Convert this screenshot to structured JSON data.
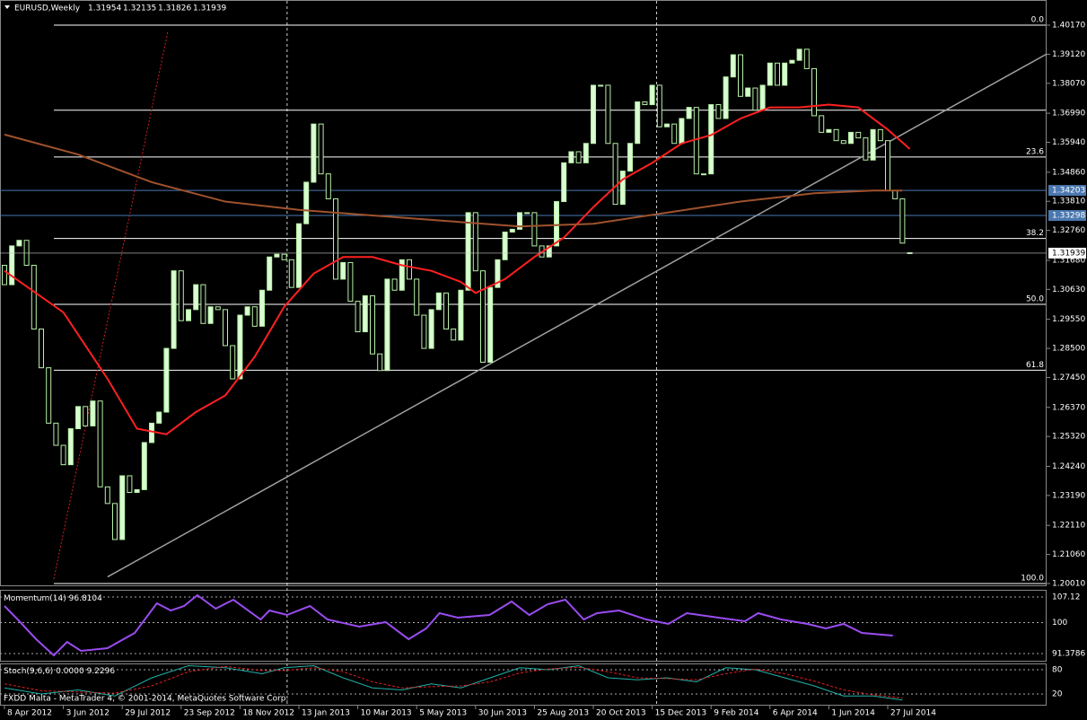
{
  "chart_data": [
    {
      "type": "candlestick",
      "title": "EURUSD,Weekly",
      "header_values": [
        1.31954,
        1.32135,
        1.31826,
        1.31939
      ],
      "up_color": "#d8ffd0",
      "down_color": "#000000",
      "edge_color": "#b8f0a8",
      "open": [
        1.315,
        1.308,
        1.322,
        1.324,
        1.315,
        1.292,
        1.278,
        1.258,
        1.25,
        1.243,
        1.256,
        1.264,
        1.257,
        1.266,
        1.235,
        1.229,
        1.216,
        1.239,
        1.233,
        1.234,
        1.251,
        1.258,
        1.262,
        1.285,
        1.313,
        1.295,
        1.299,
        1.308,
        1.294,
        1.3,
        1.299,
        1.286,
        1.274,
        1.297,
        1.3,
        1.293,
        1.306,
        1.318,
        1.319,
        1.317,
        1.307,
        1.33,
        1.345,
        1.366,
        1.348,
        1.339,
        1.31,
        1.316,
        1.302,
        1.291,
        1.304,
        1.283,
        1.277,
        1.31,
        1.306,
        1.317,
        1.31,
        1.297,
        1.285,
        1.299,
        1.305,
        1.292,
        1.288,
        1.306,
        1.334,
        1.313,
        1.28,
        1.307,
        1.317,
        1.327,
        1.328,
        1.334,
        1.334,
        1.322,
        1.318,
        1.322,
        1.338,
        1.352,
        1.356,
        1.352,
        1.359,
        1.38,
        1.38,
        1.359,
        1.337,
        1.349,
        1.359,
        1.374,
        1.373,
        1.38,
        1.365,
        1.366,
        1.359,
        1.368,
        1.372,
        1.348,
        1.348,
        1.373,
        1.368,
        1.383,
        1.391,
        1.376,
        1.379,
        1.371,
        1.38,
        1.388,
        1.38,
        1.388,
        1.389,
        1.393,
        1.386,
        1.369,
        1.363,
        1.364,
        1.36,
        1.359,
        1.363,
        1.361,
        1.353,
        1.364,
        1.36,
        1.342,
        1.339,
        1.31954
      ],
      "close": [
        1.308,
        1.322,
        1.324,
        1.315,
        1.292,
        1.278,
        1.258,
        1.25,
        1.243,
        1.256,
        1.264,
        1.257,
        1.266,
        1.235,
        1.229,
        1.216,
        1.239,
        1.233,
        1.234,
        1.251,
        1.258,
        1.262,
        1.285,
        1.313,
        1.295,
        1.299,
        1.308,
        1.294,
        1.3,
        1.299,
        1.286,
        1.274,
        1.297,
        1.3,
        1.293,
        1.306,
        1.318,
        1.319,
        1.317,
        1.307,
        1.33,
        1.345,
        1.366,
        1.348,
        1.339,
        1.31,
        1.316,
        1.302,
        1.291,
        1.304,
        1.283,
        1.277,
        1.31,
        1.306,
        1.317,
        1.31,
        1.297,
        1.285,
        1.299,
        1.305,
        1.292,
        1.288,
        1.306,
        1.334,
        1.313,
        1.28,
        1.307,
        1.317,
        1.327,
        1.328,
        1.334,
        1.334,
        1.322,
        1.318,
        1.322,
        1.338,
        1.352,
        1.356,
        1.352,
        1.359,
        1.38,
        1.38,
        1.359,
        1.337,
        1.349,
        1.359,
        1.374,
        1.373,
        1.38,
        1.365,
        1.366,
        1.359,
        1.368,
        1.372,
        1.348,
        1.348,
        1.373,
        1.368,
        1.383,
        1.391,
        1.376,
        1.379,
        1.371,
        1.38,
        1.388,
        1.38,
        1.388,
        1.389,
        1.393,
        1.386,
        1.369,
        1.363,
        1.364,
        1.36,
        1.359,
        1.363,
        1.361,
        1.353,
        1.364,
        1.36,
        1.342,
        1.339,
        1.323,
        1.31939
      ],
      "ylim": [
        1.19945,
        1.41013
      ],
      "yticks": [
        {
          "value": 1.4017,
          "label": "1.40170"
        },
        {
          "value": 1.3912,
          "label": "1.39120"
        },
        {
          "value": 1.3807,
          "label": "1.38070"
        },
        {
          "value": 1.3699,
          "label": "1.36990"
        },
        {
          "value": 1.3594,
          "label": "1.35940"
        },
        {
          "value": 1.3486,
          "label": "1.34860"
        },
        {
          "value": 1.3381,
          "label": "1.33810"
        },
        {
          "value": 1.3276,
          "label": "1.32760"
        },
        {
          "value": 1.3168,
          "label": "1.31680"
        },
        {
          "value": 1.3063,
          "label": "1.30630"
        },
        {
          "value": 1.2955,
          "label": "1.29550"
        },
        {
          "value": 1.285,
          "label": "1.28500"
        },
        {
          "value": 1.2745,
          "label": "1.27450"
        },
        {
          "value": 1.2637,
          "label": "1.26370"
        },
        {
          "value": 1.2532,
          "label": "1.25320"
        },
        {
          "value": 1.2424,
          "label": "1.24240"
        },
        {
          "value": 1.2319,
          "label": "1.23190"
        },
        {
          "value": 1.2211,
          "label": "1.22110"
        },
        {
          "value": 1.2106,
          "label": "1.21060"
        },
        {
          "value": 1.2001,
          "label": "1.20010"
        }
      ],
      "xticks": [
        {
          "value": 0,
          "label": "8 Apr 2012"
        },
        {
          "value": 8,
          "label": "3 Jun 2012"
        },
        {
          "value": 16,
          "label": "29 Jul 2012"
        },
        {
          "value": 24,
          "label": "23 Sep 2012"
        },
        {
          "value": 32,
          "label": "18 Nov 2012"
        },
        {
          "value": 40,
          "label": "13 Jan 2013"
        },
        {
          "value": 48,
          "label": "10 Mar 2013"
        },
        {
          "value": 56,
          "label": "5 May 2013"
        },
        {
          "value": 64,
          "label": "30 Jun 2013"
        },
        {
          "value": 72,
          "label": "25 Aug 2013"
        },
        {
          "value": 80,
          "label": "20 Oct 2013"
        },
        {
          "value": 88,
          "label": "15 Dec 2013"
        },
        {
          "value": 96,
          "label": "9 Feb 2014"
        },
        {
          "value": 104,
          "label": "6 Apr 2014"
        },
        {
          "value": 112,
          "label": "1 Jun 2014"
        },
        {
          "value": 120,
          "label": "27 Jul 2014"
        }
      ],
      "fib_levels": [
        {
          "value": 1.4017,
          "label": "0.0"
        },
        {
          "value": 1.3541,
          "label": "23.6"
        },
        {
          "value": 1.3247,
          "label": "38.2"
        },
        {
          "value": 1.3009,
          "label": "50.0"
        },
        {
          "value": 1.2771,
          "label": "61.8"
        },
        {
          "value": 1.2001,
          "label": "100.0"
        }
      ],
      "hlines": [
        1.371
      ],
      "marked_levels": [
        1.34203,
        1.33298
      ],
      "ma_lines": [
        {
          "color": "#ff2020",
          "x": [
            0,
            8,
            14,
            18,
            22,
            26,
            30,
            34,
            38,
            42,
            46,
            50,
            54,
            58,
            62,
            64,
            68,
            72,
            76,
            80,
            84,
            88,
            92,
            96,
            100,
            104,
            108,
            112,
            116,
            120,
            123
          ],
          "values": [
            1.313,
            1.298,
            1.274,
            1.256,
            1.254,
            1.262,
            1.268,
            1.282,
            1.3,
            1.312,
            1.318,
            1.318,
            1.315,
            1.313,
            1.309,
            1.305,
            1.31,
            1.318,
            1.325,
            1.336,
            1.346,
            1.352,
            1.359,
            1.362,
            1.368,
            1.372,
            1.372,
            1.373,
            1.372,
            1.364,
            1.357
          ]
        },
        {
          "color": "#a0522d",
          "x": [
            0,
            10,
            20,
            30,
            40,
            50,
            60,
            70,
            80,
            90,
            100,
            110,
            118,
            122
          ],
          "values": [
            1.3622,
            1.355,
            1.345,
            1.338,
            1.335,
            1.333,
            1.331,
            1.329,
            1.33,
            1.334,
            1.338,
            1.341,
            1.342,
            1.342
          ]
        }
      ],
      "trendline": {
        "color": "#a0a0a0",
        "x": [
          14,
          141.6
        ],
        "values": [
          1.2025,
          1.3913
        ]
      },
      "fib_line": {
        "color": "#d02020",
        "x": [
          6.7,
          22.2
        ],
        "values": [
          1.2017,
          1.3995
        ]
      }
    },
    {
      "type": "line",
      "title": "Momentum(14)",
      "last_value": 96.8104,
      "color": "#9a4cf0",
      "ylim": [
        89.13,
        108.37
      ],
      "yticks": [
        107.12,
        100,
        91.3786
      ],
      "x": [
        0,
        1.8,
        4.3,
        6.7,
        8.5,
        10.4,
        14,
        17.7,
        20.7,
        22.6,
        24.4,
        26.2,
        28.7,
        31.1,
        34.8,
        36,
        38.4,
        41.5,
        43.9,
        48.2,
        51.8,
        54.9,
        57.3,
        59.1,
        61.6,
        65.9,
        68.9,
        71.3,
        73.8,
        76.2,
        78.7,
        80.5,
        83.5,
        87.2,
        90.2,
        92.7,
        97,
        100.6,
        102.4,
        105.5,
        109.1,
        111.6,
        114,
        116.5,
        120.7
      ],
      "values": [
        104.62,
        100.87,
        95.38,
        90.88,
        94.63,
        92.13,
        92.88,
        97.13,
        105.37,
        103.37,
        104.62,
        107.62,
        103.87,
        106.37,
        100.87,
        103.37,
        102.12,
        104.62,
        100.87,
        98.88,
        100.13,
        95.38,
        98.38,
        102.62,
        101.37,
        102.12,
        105.87,
        102.12,
        105.12,
        106.37,
        100.87,
        102.62,
        103.37,
        100.87,
        99.63,
        102.62,
        101.37,
        100.38,
        102.62,
        100.87,
        99.63,
        98.38,
        99.63,
        97.13,
        96.38
      ]
    },
    {
      "type": "line",
      "title": "Stoch(9,6,6)",
      "last_values": [
        {
          "value": 0,
          "label": "0.0000"
        },
        9.2296
      ],
      "ylim": [
        0,
        100
      ],
      "yticks": [
        80,
        20
      ],
      "series": [
        {
          "color": "#20b2aa",
          "dash": false,
          "x": [
            0,
            5,
            10,
            15,
            20,
            25,
            30,
            35,
            38,
            42,
            46,
            50,
            54,
            58,
            62,
            66,
            70,
            74,
            78,
            82,
            86,
            90,
            94,
            98,
            102,
            106,
            110,
            114,
            118,
            122
          ],
          "values": [
            35,
            20,
            30,
            15,
            60,
            90,
            85,
            70,
            85,
            90,
            60,
            35,
            30,
            45,
            35,
            60,
            85,
            80,
            90,
            60,
            55,
            60,
            50,
            85,
            80,
            60,
            40,
            15,
            15,
            5
          ]
        },
        {
          "color": "#e02020",
          "dash": true,
          "x": [
            0,
            5,
            10,
            15,
            20,
            25,
            30,
            35,
            38,
            42,
            46,
            50,
            54,
            58,
            62,
            66,
            70,
            74,
            78,
            82,
            86,
            90,
            94,
            98,
            102,
            106,
            110,
            114,
            118,
            122
          ],
          "values": [
            45,
            28,
            25,
            22,
            40,
            75,
            88,
            78,
            78,
            85,
            75,
            50,
            35,
            38,
            40,
            50,
            72,
            82,
            86,
            75,
            60,
            58,
            55,
            70,
            82,
            70,
            52,
            30,
            18,
            10
          ]
        }
      ]
    }
  ],
  "footer": "FXDD Malta - MetaTrader 4, © 2001-2014, MetaQuotes Software Corp."
}
